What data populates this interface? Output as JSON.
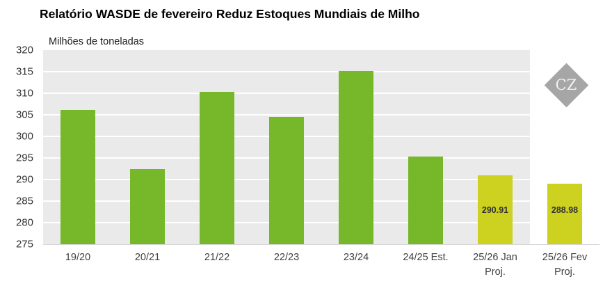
{
  "title": "Relatório WASDE de fevereiro Reduz Estoques Mundiais de Milho",
  "watermark": "CZ",
  "chart_data": {
    "type": "bar",
    "title": "Relatório WASDE de fevereiro Reduz Estoques Mundiais de Milho",
    "ylabel": "Milhões de toneladas",
    "xlabel": "",
    "ylim": [
      275,
      320
    ],
    "yticks": [
      275,
      280,
      285,
      290,
      295,
      300,
      305,
      310,
      315,
      320
    ],
    "grid": true,
    "categories": [
      "19/20",
      "20/21",
      "21/22",
      "22/23",
      "23/24",
      "24/25 Est.",
      "25/26 Jan Proj.",
      "25/26 Fev Proj."
    ],
    "values": [
      306.1,
      292.4,
      310.4,
      304.5,
      315.2,
      295.3,
      290.91,
      288.98
    ],
    "bar_labels": [
      "",
      "",
      "",
      "",
      "",
      "",
      "290.91",
      "288.98"
    ],
    "bar_colors": [
      "green",
      "green",
      "green",
      "green",
      "green",
      "green",
      "yellow",
      "yellow"
    ],
    "colors": {
      "green": "#76b82a",
      "yellow": "#ccd21f"
    },
    "plot_background": "#eaeaea",
    "highlight_last_column": true,
    "highlight_color": "#ffffff",
    "legend": "none"
  }
}
